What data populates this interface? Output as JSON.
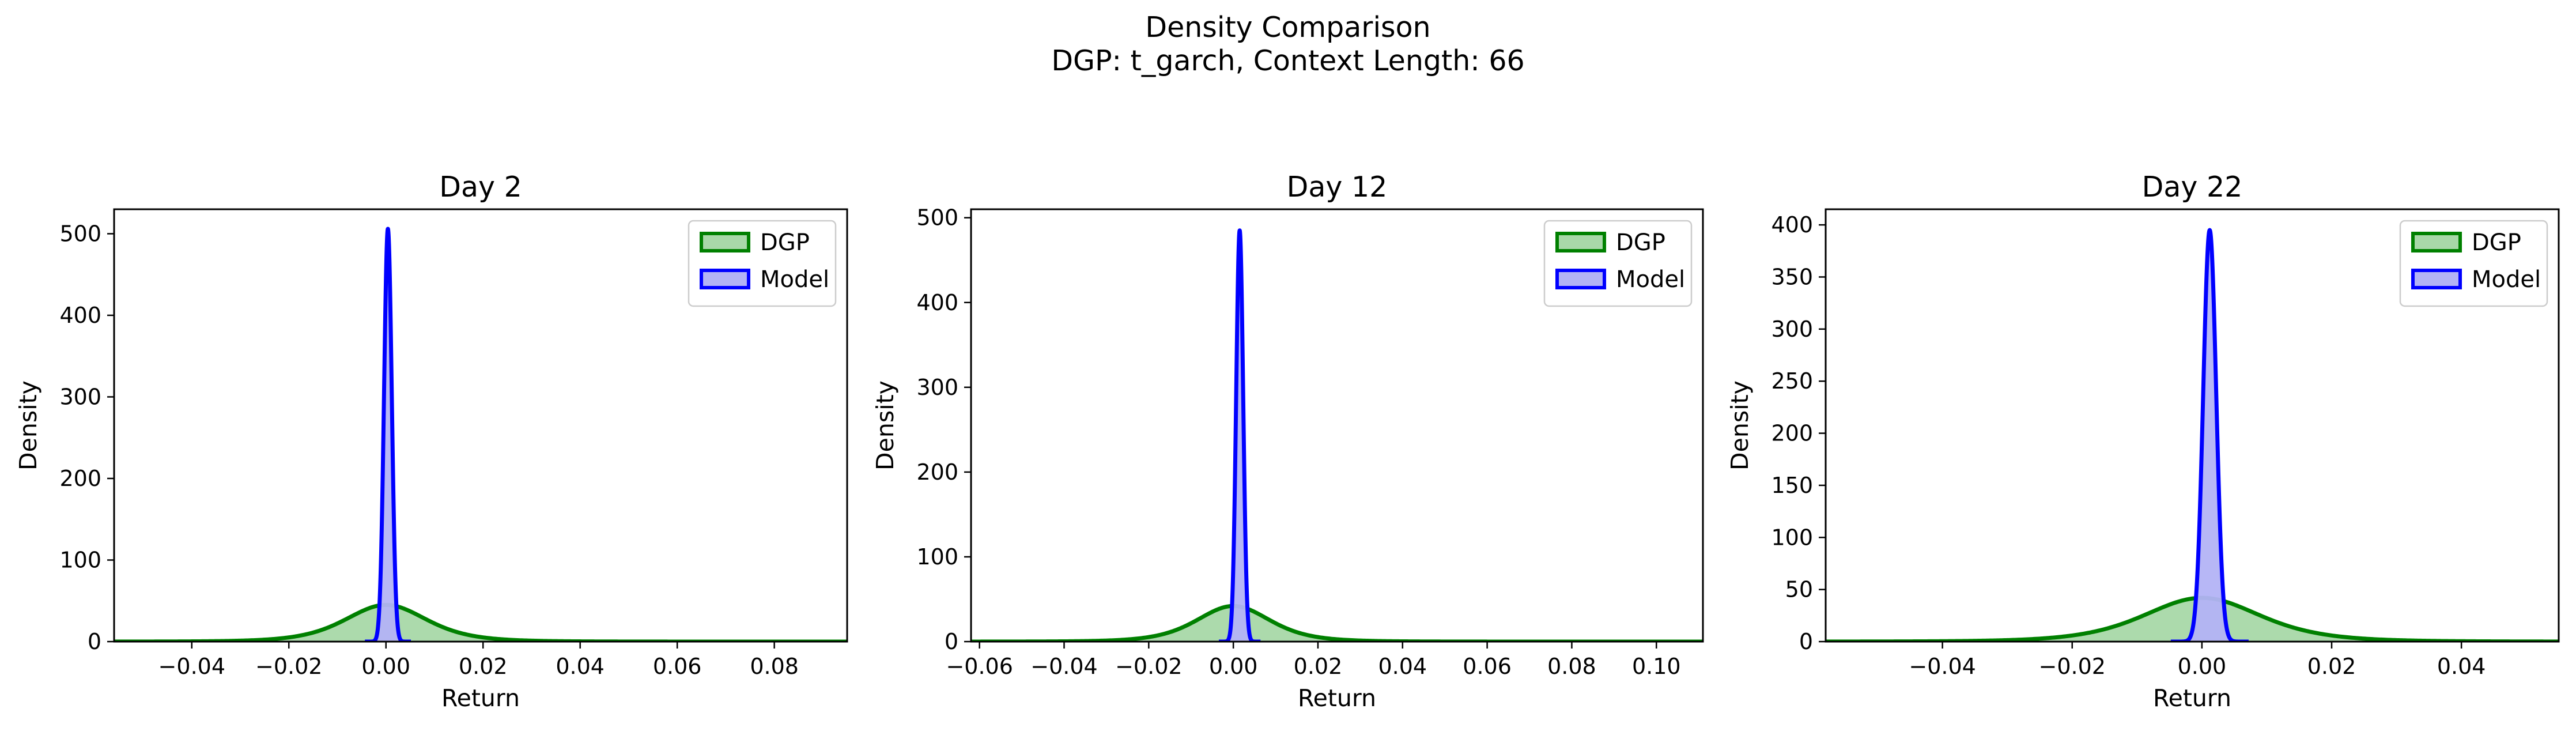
{
  "figure": {
    "title_line1": "Density Comparison",
    "title_line2": "DGP: t_garch, Context Length: 66"
  },
  "colors": {
    "dgp_line": "#008000",
    "dgp_fill": "#a8d8a8",
    "model_line": "#0000ff",
    "model_fill": "#b3b3f5"
  },
  "chart_data": [
    {
      "type": "area",
      "title": "Day 2",
      "xlabel": "Return",
      "ylabel": "Density",
      "xlim": [
        -0.056,
        0.095
      ],
      "ylim": [
        0,
        530
      ],
      "xticks": [
        -0.04,
        -0.02,
        0.0,
        0.02,
        0.04,
        0.06,
        0.08
      ],
      "xtick_labels": [
        "−0.04",
        "−0.02",
        "0.00",
        "0.02",
        "0.04",
        "0.06",
        "0.08"
      ],
      "yticks": [
        0,
        100,
        200,
        300,
        400,
        500
      ],
      "ytick_labels": [
        "0",
        "100",
        "200",
        "300",
        "400",
        "500"
      ],
      "legend_position": "top-right",
      "series": [
        {
          "name": "DGP",
          "kind": "density",
          "mean": 0.0,
          "sd": 0.0087,
          "df": 5,
          "peak": 45
        },
        {
          "name": "Model",
          "kind": "density",
          "mean": 0.0004,
          "sd": 0.00079,
          "peak": 506
        }
      ]
    },
    {
      "type": "area",
      "title": "Day 12",
      "xlabel": "Return",
      "ylabel": "Density",
      "xlim": [
        -0.062,
        0.111
      ],
      "ylim": [
        0,
        510
      ],
      "xticks": [
        -0.06,
        -0.04,
        -0.02,
        0.0,
        0.02,
        0.04,
        0.06,
        0.08,
        0.1
      ],
      "xtick_labels": [
        "−0.06",
        "−0.04",
        "−0.02",
        "0.00",
        "0.02",
        "0.04",
        "0.06",
        "0.08",
        "0.10"
      ],
      "yticks": [
        0,
        100,
        200,
        300,
        400,
        500
      ],
      "ytick_labels": [
        "0",
        "100",
        "200",
        "300",
        "400",
        "500"
      ],
      "legend_position": "top-right",
      "series": [
        {
          "name": "DGP",
          "kind": "density",
          "mean": 0.0,
          "sd": 0.009,
          "df": 5,
          "peak": 42
        },
        {
          "name": "Model",
          "kind": "density",
          "mean": 0.0015,
          "sd": 0.00082,
          "peak": 485
        }
      ]
    },
    {
      "type": "area",
      "title": "Day 22",
      "xlabel": "Return",
      "ylabel": "Density",
      "xlim": [
        -0.058,
        0.055
      ],
      "ylim": [
        0,
        415
      ],
      "xticks": [
        -0.04,
        -0.02,
        0.0,
        0.02,
        0.04
      ],
      "xtick_labels": [
        "−0.04",
        "−0.02",
        "0.00",
        "0.02",
        "0.04"
      ],
      "yticks": [
        0,
        50,
        100,
        150,
        200,
        250,
        300,
        350,
        400
      ],
      "ytick_labels": [
        "0",
        "50",
        "100",
        "150",
        "200",
        "250",
        "300",
        "350",
        "400"
      ],
      "legend_position": "top-right",
      "series": [
        {
          "name": "DGP",
          "kind": "density",
          "mean": 0.0,
          "sd": 0.0093,
          "df": 5,
          "peak": 42
        },
        {
          "name": "Model",
          "kind": "density",
          "mean": 0.0012,
          "sd": 0.001,
          "peak": 395
        }
      ]
    }
  ]
}
